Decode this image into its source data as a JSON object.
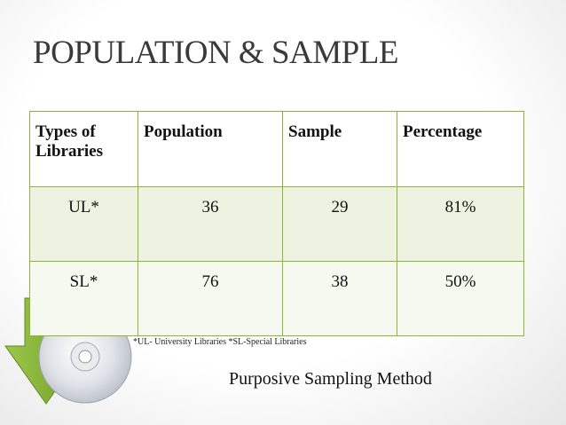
{
  "header": {
    "title": "POPULATION & SAMPLE"
  },
  "table": {
    "columns": [
      "Types of Libraries",
      "Population",
      "Sample",
      "Percentage"
    ],
    "rows": [
      [
        "UL*",
        "36",
        "29",
        "81%"
      ],
      [
        "SL*",
        "76",
        "38",
        "50%"
      ]
    ]
  },
  "footnote": "*UL- University Libraries *SL-Special Libraries",
  "caption": "Purposive Sampling Method"
}
